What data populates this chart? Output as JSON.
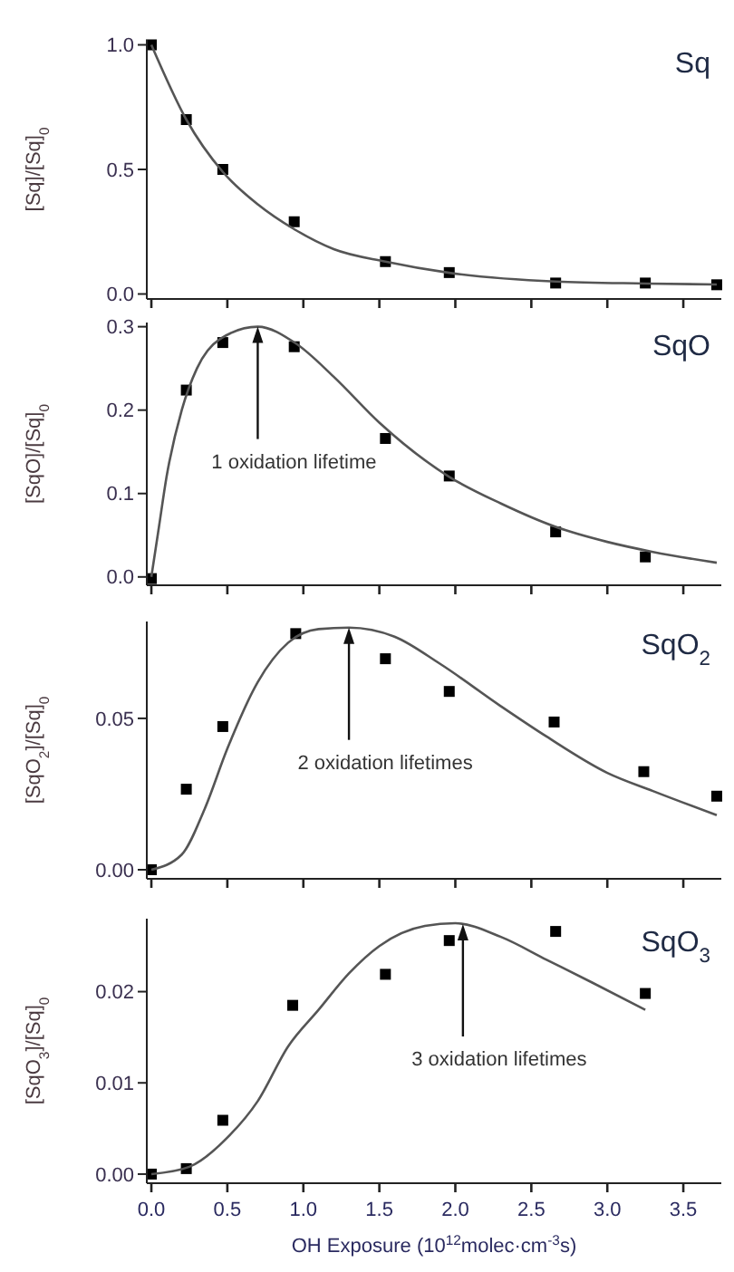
{
  "chart_data": [
    {
      "type": "scatter",
      "title": "Sq",
      "ylabel": "[Sq]/[Sq]$_{0}$",
      "xlim": [
        -0.03,
        3.75
      ],
      "ylim": [
        -0.02,
        1.02
      ],
      "xticks": [
        {
          "value": 0,
          "label": null
        },
        {
          "value": 0.5,
          "label": null
        },
        {
          "value": 1,
          "label": null
        },
        {
          "value": 1.5,
          "label": null
        },
        {
          "value": 2,
          "label": null
        },
        {
          "value": 2.5,
          "label": null
        },
        {
          "value": 3,
          "label": null
        },
        {
          "value": 3.5,
          "label": null
        }
      ],
      "yticks": [
        {
          "value": 0,
          "label": "0.0"
        },
        {
          "value": 0.5,
          "label": "0.5"
        },
        {
          "value": 1,
          "label": "1.0"
        }
      ],
      "tick_labels": "y",
      "series": [
        {
          "marker": "square",
          "color": "#000000",
          "x": [
            0,
            0.23,
            0.47,
            0.94,
            1.54,
            1.96,
            2.66,
            3.25,
            3.72
          ],
          "values": [
            1.0,
            0.7,
            0.5,
            0.29,
            0.13,
            0.086,
            0.044,
            0.044,
            0.037
          ]
        },
        {
          "type": "line",
          "marker": "none",
          "color": "#555555",
          "x": [
            0,
            0.23,
            0.47,
            0.7,
            0.94,
            1.2,
            1.54,
            1.96,
            2.66,
            3.25,
            3.72
          ],
          "values": [
            1.0,
            0.7,
            0.49,
            0.36,
            0.26,
            0.18,
            0.13,
            0.085,
            0.05,
            0.042,
            0.038
          ]
        }
      ]
    },
    {
      "type": "scatter",
      "title": "SqO",
      "ylabel": "[SqO]/[Sq]$_{0}$",
      "xlim": [
        -0.03,
        3.75
      ],
      "ylim": [
        -0.01,
        0.305
      ],
      "xticks": [
        {
          "value": 0,
          "label": null
        },
        {
          "value": 0.5,
          "label": null
        },
        {
          "value": 1,
          "label": null
        },
        {
          "value": 1.5,
          "label": null
        },
        {
          "value": 2,
          "label": null
        },
        {
          "value": 2.5,
          "label": null
        },
        {
          "value": 3,
          "label": null
        },
        {
          "value": 3.5,
          "label": null
        }
      ],
      "yticks": [
        {
          "value": 0,
          "label": "0.0"
        },
        {
          "value": 0.1,
          "label": "0.1"
        },
        {
          "value": 0.2,
          "label": "0.2"
        },
        {
          "value": 0.3,
          "label": "0.3"
        }
      ],
      "tick_labels": "y",
      "annotations": [
        {
          "text": "1 oxidation lifetime",
          "x": 0.7,
          "y": 0.3
        }
      ],
      "series": [
        {
          "marker": "square",
          "color": "#000000",
          "x": [
            0,
            0.23,
            0.47,
            0.94,
            1.54,
            1.96,
            2.66,
            3.25
          ],
          "values": [
            -0.002,
            0.224,
            0.281,
            0.276,
            0.166,
            0.121,
            0.054,
            0.024
          ]
        },
        {
          "type": "line",
          "marker": "none",
          "color": "#555555",
          "x": [
            0,
            0.05,
            0.1,
            0.2,
            0.3,
            0.45,
            0.7,
            0.95,
            1.2,
            1.5,
            1.96,
            2.3,
            2.66,
            3.0,
            3.3,
            3.72
          ],
          "values": [
            0,
            0.06,
            0.12,
            0.2,
            0.25,
            0.285,
            0.3,
            0.28,
            0.24,
            0.185,
            0.12,
            0.088,
            0.06,
            0.042,
            0.03,
            0.017
          ]
        }
      ]
    },
    {
      "type": "scatter",
      "title": "SqO$_{2}$",
      "ylabel": "[SqO$_{2}$]/[Sq]$_{0}$",
      "xlim": [
        -0.03,
        3.75
      ],
      "ylim": [
        -0.003,
        0.082
      ],
      "xticks": [
        {
          "value": 0,
          "label": null
        },
        {
          "value": 0.5,
          "label": null
        },
        {
          "value": 1,
          "label": null
        },
        {
          "value": 1.5,
          "label": null
        },
        {
          "value": 2,
          "label": null
        },
        {
          "value": 2.5,
          "label": null
        },
        {
          "value": 3,
          "label": null
        },
        {
          "value": 3.5,
          "label": null
        }
      ],
      "yticks": [
        {
          "value": 0,
          "label": "0.00"
        },
        0.05
      ],
      "tick_labels": "y",
      "annotations": [
        {
          "text": "2 oxidation lifetimes",
          "x": 1.3,
          "y": 0.08
        }
      ],
      "series": [
        {
          "marker": "square",
          "color": "#000000",
          "x": [
            0,
            0.23,
            0.47,
            0.95,
            1.54,
            1.96,
            2.65,
            3.24,
            3.72
          ],
          "values": [
            0,
            0.0266,
            0.0473,
            0.078,
            0.0697,
            0.0589,
            0.0488,
            0.0324,
            0.0243
          ]
        },
        {
          "type": "line",
          "marker": "none",
          "color": "#555555",
          "x": [
            0,
            0.2,
            0.35,
            0.5,
            0.7,
            0.9,
            1.1,
            1.3,
            1.6,
            1.9,
            2.3,
            2.6,
            3.0,
            3.3,
            3.72
          ],
          "values": [
            0,
            0.005,
            0.02,
            0.04,
            0.062,
            0.075,
            0.0795,
            0.08,
            0.077,
            0.068,
            0.054,
            0.044,
            0.032,
            0.026,
            0.018
          ]
        }
      ]
    },
    {
      "type": "scatter",
      "title": "SqO$_{3}$",
      "ylabel": "[SqO$_{3}$]/[Sq]$_{0}$",
      "xlabel": "OH Exposure (10$^{12}$molec·cm$^{-3}$s)",
      "xlim": [
        -0.03,
        3.75
      ],
      "ylim": [
        -0.001,
        0.028
      ],
      "xticks": [
        {
          "value": 0,
          "label": "0.0"
        },
        {
          "value": 0.5,
          "label": "0.5"
        },
        {
          "value": 1,
          "label": "1.0"
        },
        {
          "value": 1.5,
          "label": "1.5"
        },
        {
          "value": 2,
          "label": "2.0"
        },
        {
          "value": 2.5,
          "label": "2.5"
        },
        {
          "value": 3,
          "label": "3.0"
        },
        {
          "value": 3.5,
          "label": "3.5"
        }
      ],
      "yticks": [
        {
          "value": 0,
          "label": "0.00"
        },
        0.01,
        0.02
      ],
      "annotations": [
        {
          "text": "3 oxidation lifetimes",
          "x": 2.05,
          "y": 0.0274
        }
      ],
      "series": [
        {
          "marker": "square",
          "color": "#000000",
          "x": [
            0,
            0.23,
            0.47,
            0.93,
            1.54,
            1.96,
            2.66,
            3.25
          ],
          "values": [
            0,
            0.0006,
            0.0059,
            0.0185,
            0.0219,
            0.0256,
            0.0266,
            0.0198
          ]
        },
        {
          "type": "line",
          "marker": "none",
          "color": "#555555",
          "x": [
            0,
            0.25,
            0.5,
            0.7,
            0.9,
            1.1,
            1.3,
            1.5,
            1.8,
            2.0,
            2.3,
            2.6,
            2.9,
            3.25
          ],
          "values": [
            0,
            0.0008,
            0.004,
            0.008,
            0.014,
            0.018,
            0.022,
            0.025,
            0.0272,
            0.0275,
            0.026,
            0.0235,
            0.021,
            0.018
          ]
        }
      ]
    }
  ]
}
